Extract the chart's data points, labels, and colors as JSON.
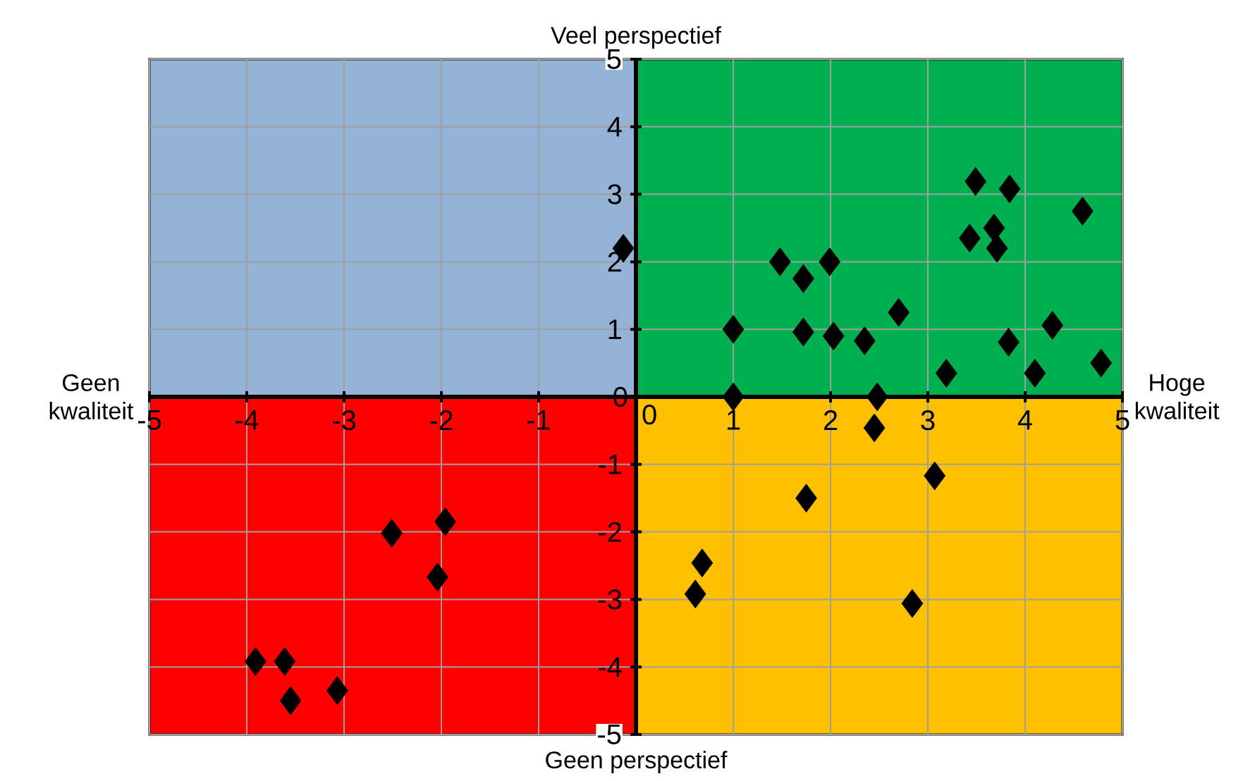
{
  "chart_data": {
    "type": "scatter",
    "ylabel": "Veel perspectief",
    "xlabel": "Hoge kwaliteit",
    "annotations": [
      "Geen perspectief",
      "Geen kwaliteit"
    ],
    "x": [
      -0.13,
      1.0,
      1.0,
      1.48,
      1.72,
      1.72,
      1.99,
      2.03,
      2.35,
      2.7,
      2.48,
      2.45,
      3.19,
      3.43,
      3.49,
      3.68,
      3.71,
      3.84,
      3.83,
      4.1,
      4.28,
      4.59,
      4.78,
      0.61,
      0.68,
      1.75,
      3.07,
      2.84,
      -2.51,
      -1.96,
      -2.04,
      -3.91,
      -3.61,
      -3.55,
      -3.07
    ],
    "values": [
      2.2,
      1.0,
      0.0,
      2.0,
      1.75,
      0.96,
      2.0,
      0.9,
      0.83,
      1.25,
      0.0,
      -0.46,
      0.35,
      2.35,
      3.19,
      2.5,
      2.2,
      3.08,
      0.81,
      0.35,
      1.06,
      2.75,
      0.5,
      -2.92,
      -2.46,
      -1.5,
      -1.17,
      -3.06,
      -2.02,
      -1.85,
      -2.67,
      -3.92,
      -3.92,
      -4.5,
      -4.35
    ],
    "color": "#000000",
    "marker": "diamond",
    "grid": true,
    "xlim": [
      -5,
      5
    ],
    "ylim": [
      -5,
      5
    ],
    "xticks": [
      -5,
      -4,
      -3,
      -2,
      -1,
      0,
      1,
      2,
      3,
      4,
      5
    ],
    "yticks": [
      -5,
      -4,
      -3,
      -2,
      -1,
      0,
      1,
      2,
      3,
      4,
      5
    ]
  }
}
